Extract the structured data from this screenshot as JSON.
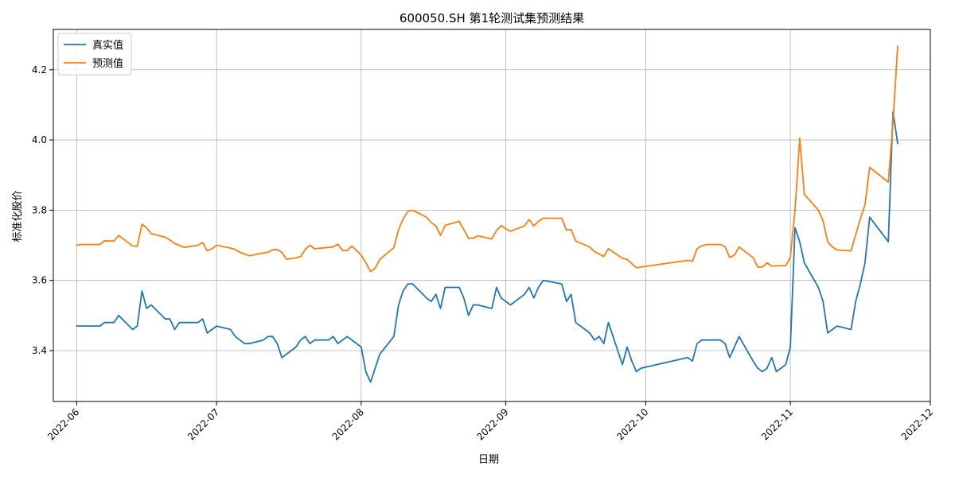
{
  "chart_data": {
    "type": "line",
    "title": "600050.SH 第1轮测试集预测结果",
    "xlabel": "日期",
    "ylabel": "标准化股价",
    "x_ticks": [
      "2022-06",
      "2022-07",
      "2022-08",
      "2022-09",
      "2022-10",
      "2022-11",
      "2022-12"
    ],
    "y_ticks": [
      "3.4",
      "3.6",
      "3.8",
      "4.0",
      "4.2"
    ],
    "xlim": [
      "2022-05-27",
      "2022-12-01"
    ],
    "ylim": [
      3.255,
      4.315
    ],
    "grid": true,
    "legend_position": "top-left",
    "series": [
      {
        "name": "真实值",
        "color": "#1f77b4",
        "points": [
          [
            "2022-06-01",
            3.47
          ],
          [
            "2022-06-06",
            3.47
          ],
          [
            "2022-06-07",
            3.48
          ],
          [
            "2022-06-08",
            3.48
          ],
          [
            "2022-06-09",
            3.48
          ],
          [
            "2022-06-10",
            3.5
          ],
          [
            "2022-06-13",
            3.46
          ],
          [
            "2022-06-14",
            3.47
          ],
          [
            "2022-06-15",
            3.57
          ],
          [
            "2022-06-16",
            3.52
          ],
          [
            "2022-06-17",
            3.53
          ],
          [
            "2022-06-20",
            3.49
          ],
          [
            "2022-06-21",
            3.49
          ],
          [
            "2022-06-22",
            3.46
          ],
          [
            "2022-06-23",
            3.48
          ],
          [
            "2022-06-24",
            3.48
          ],
          [
            "2022-06-27",
            3.48
          ],
          [
            "2022-06-28",
            3.49
          ],
          [
            "2022-06-29",
            3.45
          ],
          [
            "2022-06-30",
            3.46
          ],
          [
            "2022-07-01",
            3.47
          ],
          [
            "2022-07-04",
            3.46
          ],
          [
            "2022-07-05",
            3.44
          ],
          [
            "2022-07-06",
            3.43
          ],
          [
            "2022-07-07",
            3.42
          ],
          [
            "2022-07-08",
            3.42
          ],
          [
            "2022-07-11",
            3.43
          ],
          [
            "2022-07-12",
            3.44
          ],
          [
            "2022-07-13",
            3.44
          ],
          [
            "2022-07-14",
            3.42
          ],
          [
            "2022-07-15",
            3.38
          ],
          [
            "2022-07-18",
            3.41
          ],
          [
            "2022-07-19",
            3.43
          ],
          [
            "2022-07-20",
            3.44
          ],
          [
            "2022-07-21",
            3.42
          ],
          [
            "2022-07-22",
            3.43
          ],
          [
            "2022-07-25",
            3.43
          ],
          [
            "2022-07-26",
            3.44
          ],
          [
            "2022-07-27",
            3.42
          ],
          [
            "2022-07-28",
            3.43
          ],
          [
            "2022-07-29",
            3.44
          ],
          [
            "2022-08-01",
            3.41
          ],
          [
            "2022-08-02",
            3.34
          ],
          [
            "2022-08-03",
            3.31
          ],
          [
            "2022-08-05",
            3.39
          ],
          [
            "2022-08-08",
            3.44
          ],
          [
            "2022-08-09",
            3.53
          ],
          [
            "2022-08-10",
            3.57
          ],
          [
            "2022-08-11",
            3.59
          ],
          [
            "2022-08-12",
            3.59
          ],
          [
            "2022-08-15",
            3.55
          ],
          [
            "2022-08-16",
            3.54
          ],
          [
            "2022-08-17",
            3.56
          ],
          [
            "2022-08-18",
            3.52
          ],
          [
            "2022-08-19",
            3.58
          ],
          [
            "2022-08-22",
            3.58
          ],
          [
            "2022-08-23",
            3.55
          ],
          [
            "2022-08-24",
            3.5
          ],
          [
            "2022-08-25",
            3.53
          ],
          [
            "2022-08-26",
            3.53
          ],
          [
            "2022-08-29",
            3.52
          ],
          [
            "2022-08-30",
            3.58
          ],
          [
            "2022-08-31",
            3.55
          ],
          [
            "2022-09-01",
            3.54
          ],
          [
            "2022-09-02",
            3.53
          ],
          [
            "2022-09-05",
            3.56
          ],
          [
            "2022-09-06",
            3.58
          ],
          [
            "2022-09-07",
            3.55
          ],
          [
            "2022-09-08",
            3.58
          ],
          [
            "2022-09-09",
            3.6
          ],
          [
            "2022-09-13",
            3.59
          ],
          [
            "2022-09-14",
            3.54
          ],
          [
            "2022-09-15",
            3.56
          ],
          [
            "2022-09-16",
            3.48
          ],
          [
            "2022-09-19",
            3.45
          ],
          [
            "2022-09-20",
            3.43
          ],
          [
            "2022-09-21",
            3.44
          ],
          [
            "2022-09-22",
            3.42
          ],
          [
            "2022-09-23",
            3.48
          ],
          [
            "2022-09-26",
            3.36
          ],
          [
            "2022-09-27",
            3.41
          ],
          [
            "2022-09-28",
            3.37
          ],
          [
            "2022-09-29",
            3.34
          ],
          [
            "2022-09-30",
            3.35
          ],
          [
            "2022-10-10",
            3.38
          ],
          [
            "2022-10-11",
            3.37
          ],
          [
            "2022-10-12",
            3.42
          ],
          [
            "2022-10-13",
            3.43
          ],
          [
            "2022-10-14",
            3.43
          ],
          [
            "2022-10-17",
            3.43
          ],
          [
            "2022-10-18",
            3.42
          ],
          [
            "2022-10-19",
            3.38
          ],
          [
            "2022-10-21",
            3.44
          ],
          [
            "2022-10-24",
            3.37
          ],
          [
            "2022-10-25",
            3.35
          ],
          [
            "2022-10-26",
            3.34
          ],
          [
            "2022-10-27",
            3.35
          ],
          [
            "2022-10-28",
            3.38
          ],
          [
            "2022-10-29",
            3.34
          ],
          [
            "2022-10-31",
            3.36
          ],
          [
            "2022-11-01",
            3.41
          ],
          [
            "2022-11-02",
            3.75
          ],
          [
            "2022-11-03",
            3.71
          ],
          [
            "2022-11-04",
            3.65
          ],
          [
            "2022-11-07",
            3.58
          ],
          [
            "2022-11-08",
            3.54
          ],
          [
            "2022-11-09",
            3.45
          ],
          [
            "2022-11-11",
            3.47
          ],
          [
            "2022-11-14",
            3.46
          ],
          [
            "2022-11-15",
            3.54
          ],
          [
            "2022-11-16",
            3.59
          ],
          [
            "2022-11-17",
            3.65
          ],
          [
            "2022-11-18",
            3.78
          ],
          [
            "2022-11-22",
            3.71
          ],
          [
            "2022-11-23",
            4.08
          ],
          [
            "2022-11-24",
            3.99
          ]
        ]
      },
      {
        "name": "预测值",
        "color": "#ff7f0e",
        "points": [
          [
            "2022-06-01",
            3.7
          ],
          [
            "2022-06-02",
            3.702
          ],
          [
            "2022-06-06",
            3.702
          ],
          [
            "2022-06-07",
            3.713
          ],
          [
            "2022-06-08",
            3.712
          ],
          [
            "2022-06-09",
            3.712
          ],
          [
            "2022-06-10",
            3.728
          ],
          [
            "2022-06-13",
            3.698
          ],
          [
            "2022-06-14",
            3.697
          ],
          [
            "2022-06-15",
            3.76
          ],
          [
            "2022-06-16",
            3.75
          ],
          [
            "2022-06-17",
            3.733
          ],
          [
            "2022-06-20",
            3.723
          ],
          [
            "2022-06-21",
            3.715
          ],
          [
            "2022-06-22",
            3.705
          ],
          [
            "2022-06-23",
            3.7
          ],
          [
            "2022-06-24",
            3.694
          ],
          [
            "2022-06-27",
            3.7
          ],
          [
            "2022-06-28",
            3.708
          ],
          [
            "2022-06-29",
            3.684
          ],
          [
            "2022-06-30",
            3.69
          ],
          [
            "2022-07-01",
            3.7
          ],
          [
            "2022-07-04",
            3.692
          ],
          [
            "2022-07-05",
            3.688
          ],
          [
            "2022-07-06",
            3.68
          ],
          [
            "2022-07-07",
            3.675
          ],
          [
            "2022-07-08",
            3.67
          ],
          [
            "2022-07-11",
            3.678
          ],
          [
            "2022-07-12",
            3.68
          ],
          [
            "2022-07-13",
            3.687
          ],
          [
            "2022-07-14",
            3.688
          ],
          [
            "2022-07-15",
            3.68
          ],
          [
            "2022-07-16",
            3.66
          ],
          [
            "2022-07-18",
            3.664
          ],
          [
            "2022-07-19",
            3.668
          ],
          [
            "2022-07-20",
            3.688
          ],
          [
            "2022-07-21",
            3.7
          ],
          [
            "2022-07-22",
            3.69
          ],
          [
            "2022-07-25",
            3.694
          ],
          [
            "2022-07-26",
            3.695
          ],
          [
            "2022-07-27",
            3.703
          ],
          [
            "2022-07-28",
            3.685
          ],
          [
            "2022-07-29",
            3.685
          ],
          [
            "2022-07-30",
            3.698
          ],
          [
            "2022-08-01",
            3.672
          ],
          [
            "2022-08-02",
            3.65
          ],
          [
            "2022-08-03",
            3.625
          ],
          [
            "2022-08-04",
            3.635
          ],
          [
            "2022-08-05",
            3.66
          ],
          [
            "2022-08-08",
            3.693
          ],
          [
            "2022-08-09",
            3.745
          ],
          [
            "2022-08-10",
            3.775
          ],
          [
            "2022-08-11",
            3.797
          ],
          [
            "2022-08-12",
            3.8
          ],
          [
            "2022-08-15",
            3.78
          ],
          [
            "2022-08-16",
            3.765
          ],
          [
            "2022-08-17",
            3.755
          ],
          [
            "2022-08-18",
            3.728
          ],
          [
            "2022-08-19",
            3.757
          ],
          [
            "2022-08-22",
            3.768
          ],
          [
            "2022-08-23",
            3.745
          ],
          [
            "2022-08-24",
            3.72
          ],
          [
            "2022-08-25",
            3.72
          ],
          [
            "2022-08-26",
            3.727
          ],
          [
            "2022-08-29",
            3.718
          ],
          [
            "2022-08-30",
            3.742
          ],
          [
            "2022-08-31",
            3.756
          ],
          [
            "2022-09-01",
            3.747
          ],
          [
            "2022-09-02",
            3.74
          ],
          [
            "2022-09-05",
            3.755
          ],
          [
            "2022-09-06",
            3.773
          ],
          [
            "2022-09-07",
            3.755
          ],
          [
            "2022-09-08",
            3.768
          ],
          [
            "2022-09-09",
            3.777
          ],
          [
            "2022-09-13",
            3.777
          ],
          [
            "2022-09-14",
            3.743
          ],
          [
            "2022-09-15",
            3.745
          ],
          [
            "2022-09-16",
            3.712
          ],
          [
            "2022-09-19",
            3.695
          ],
          [
            "2022-09-20",
            3.682
          ],
          [
            "2022-09-21",
            3.675
          ],
          [
            "2022-09-22",
            3.668
          ],
          [
            "2022-09-23",
            3.69
          ],
          [
            "2022-09-26",
            3.663
          ],
          [
            "2022-09-27",
            3.66
          ],
          [
            "2022-09-28",
            3.648
          ],
          [
            "2022-09-29",
            3.636
          ],
          [
            "2022-09-30",
            3.638
          ],
          [
            "2022-10-10",
            3.657
          ],
          [
            "2022-10-11",
            3.654
          ],
          [
            "2022-10-12",
            3.69
          ],
          [
            "2022-10-13",
            3.698
          ],
          [
            "2022-10-14",
            3.702
          ],
          [
            "2022-10-17",
            3.702
          ],
          [
            "2022-10-18",
            3.696
          ],
          [
            "2022-10-19",
            3.665
          ],
          [
            "2022-10-20",
            3.672
          ],
          [
            "2022-10-21",
            3.695
          ],
          [
            "2022-10-24",
            3.665
          ],
          [
            "2022-10-25",
            3.638
          ],
          [
            "2022-10-26",
            3.638
          ],
          [
            "2022-10-27",
            3.65
          ],
          [
            "2022-10-28",
            3.641
          ],
          [
            "2022-10-31",
            3.642
          ],
          [
            "2022-11-01",
            3.665
          ],
          [
            "2022-11-02",
            3.8
          ],
          [
            "2022-11-03",
            4.005
          ],
          [
            "2022-11-04",
            3.845
          ],
          [
            "2022-11-07",
            3.8
          ],
          [
            "2022-11-08",
            3.77
          ],
          [
            "2022-11-09",
            3.71
          ],
          [
            "2022-11-10",
            3.695
          ],
          [
            "2022-11-11",
            3.687
          ],
          [
            "2022-11-14",
            3.684
          ],
          [
            "2022-11-15",
            3.73
          ],
          [
            "2022-11-16",
            3.775
          ],
          [
            "2022-11-17",
            3.815
          ],
          [
            "2022-11-18",
            3.922
          ],
          [
            "2022-11-22",
            3.88
          ],
          [
            "2022-11-23",
            4.05
          ],
          [
            "2022-11-24",
            4.267
          ]
        ]
      }
    ]
  }
}
